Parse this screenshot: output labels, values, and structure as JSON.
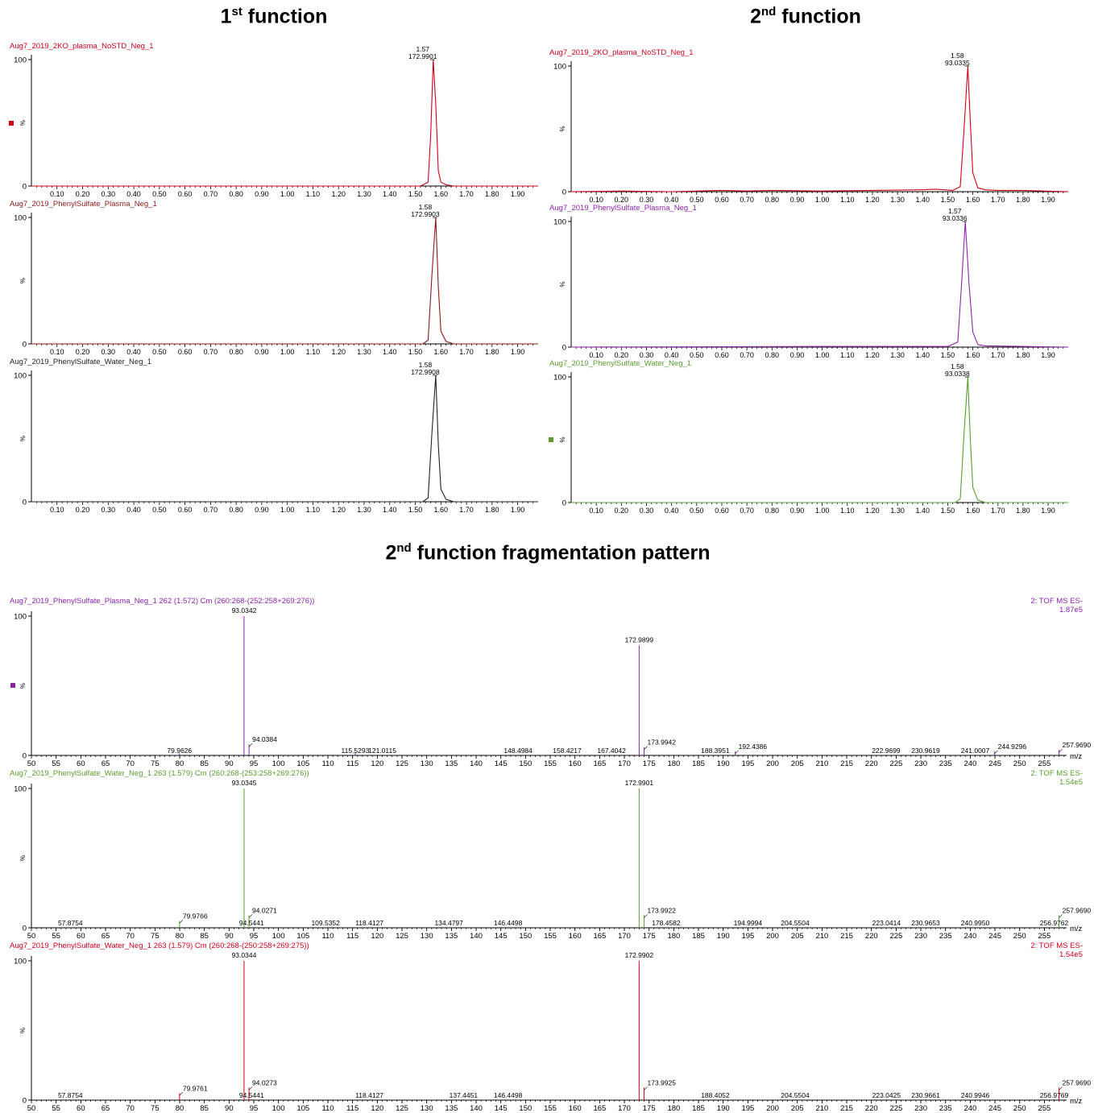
{
  "titles": {
    "left": {
      "pre": "1",
      "sup": "st",
      "post": " function"
    },
    "right": {
      "pre": "2",
      "sup": "nd",
      "post": " function"
    },
    "bottom": {
      "pre": "2",
      "sup": "nd",
      "post": " function fragmentation pattern"
    }
  },
  "chart_data": [
    {
      "id": "c1",
      "type": "line",
      "title": "Aug7_2019_2KO_plasma_NoSTD_Neg_1",
      "color": "#d0021b",
      "legend_marker": true,
      "x_axis": "time",
      "xlim": [
        0,
        1.98
      ],
      "ylim": [
        0,
        100
      ],
      "yticks": [
        0,
        100
      ],
      "ylabel": "%",
      "xticks": [
        "0.10",
        "0.20",
        "0.30",
        "0.40",
        "0.50",
        "0.60",
        "0.70",
        "0.80",
        "0.90",
        "1.00",
        "1.10",
        "1.20",
        "1.30",
        "1.40",
        "1.50",
        "1.60",
        "1.70",
        "1.80",
        "1.90"
      ],
      "x": [
        0.0,
        1.52,
        1.55,
        1.56,
        1.57,
        1.58,
        1.59,
        1.6,
        1.62,
        1.65,
        1.98
      ],
      "y": [
        0,
        0,
        3,
        40,
        100,
        65,
        12,
        3,
        1,
        0,
        0
      ],
      "peak_labels": [
        {
          "x": 1.57,
          "line1": "1.57",
          "line2": "172.9901"
        }
      ]
    },
    {
      "id": "c2",
      "type": "line",
      "title": "Aug7_2019_PhenylSulfate_Plasma_Neg_1",
      "color": "#8b1a1a",
      "legend_marker": false,
      "x_axis": "time",
      "xlim": [
        0,
        1.98
      ],
      "ylim": [
        0,
        100
      ],
      "yticks": [
        0,
        100
      ],
      "ylabel": "%",
      "xticks": [
        "0.10",
        "0.20",
        "0.30",
        "0.40",
        "0.50",
        "0.60",
        "0.70",
        "0.80",
        "0.90",
        "1.00",
        "1.10",
        "1.20",
        "1.30",
        "1.40",
        "1.50",
        "1.60",
        "1.70",
        "1.80",
        "1.90"
      ],
      "x": [
        0.0,
        1.53,
        1.55,
        1.565,
        1.58,
        1.59,
        1.6,
        1.62,
        1.65,
        1.98
      ],
      "y": [
        0,
        0,
        3,
        55,
        100,
        45,
        10,
        2,
        0,
        0
      ],
      "peak_labels": [
        {
          "x": 1.58,
          "line1": "1.58",
          "line2": "172.9903"
        }
      ]
    },
    {
      "id": "c3",
      "type": "line",
      "title": "Aug7_2019_PhenylSulfate_Water_Neg_1",
      "color": "#222222",
      "legend_marker": false,
      "x_axis": "time",
      "xlim": [
        0,
        1.98
      ],
      "ylim": [
        0,
        100
      ],
      "yticks": [
        0,
        100
      ],
      "ylabel": "%",
      "xticks": [
        "0.10",
        "0.20",
        "0.30",
        "0.40",
        "0.50",
        "0.60",
        "0.70",
        "0.80",
        "0.90",
        "1.00",
        "1.10",
        "1.20",
        "1.30",
        "1.40",
        "1.50",
        "1.60",
        "1.70",
        "1.80",
        "1.90"
      ],
      "x": [
        0.0,
        1.53,
        1.55,
        1.565,
        1.58,
        1.59,
        1.6,
        1.62,
        1.65,
        1.98
      ],
      "y": [
        0,
        0,
        3,
        55,
        100,
        45,
        10,
        2,
        0,
        0
      ],
      "peak_labels": [
        {
          "x": 1.58,
          "line1": "1.58",
          "line2": "172.9908"
        }
      ]
    },
    {
      "id": "c4",
      "type": "line",
      "title": "Aug7_2019_2KO_plasma_NoSTD_Neg_1",
      "color": "#d0021b",
      "legend_marker": false,
      "x_axis": "time",
      "xlim": [
        0,
        1.98
      ],
      "ylim": [
        0,
        100
      ],
      "yticks": [
        0,
        100
      ],
      "ylabel": "%",
      "xticks": [
        "0.10",
        "0.20",
        "0.30",
        "0.40",
        "0.50",
        "0.60",
        "0.70",
        "0.80",
        "0.90",
        "1.00",
        "1.10",
        "1.20",
        "1.30",
        "1.40",
        "1.50",
        "1.60",
        "1.70",
        "1.80",
        "1.90"
      ],
      "x": [
        0.0,
        0.2,
        0.4,
        0.6,
        0.7,
        0.8,
        1.0,
        1.2,
        1.4,
        1.45,
        1.52,
        1.55,
        1.565,
        1.58,
        1.59,
        1.6,
        1.62,
        1.65,
        1.7,
        1.8,
        1.98
      ],
      "y": [
        0,
        0.5,
        0,
        1,
        0.5,
        1,
        0.5,
        1,
        1.5,
        2,
        1,
        4,
        50,
        100,
        55,
        15,
        3,
        1.5,
        1,
        1,
        0
      ],
      "peak_labels": [
        {
          "x": 1.58,
          "line1": "1.58",
          "line2": "93.0335"
        }
      ]
    },
    {
      "id": "c5",
      "type": "line",
      "title": "Aug7_2019_PhenylSulfate_Plasma_Neg_1",
      "color": "#8e24aa",
      "legend_marker": false,
      "x_axis": "time",
      "xlim": [
        0,
        1.98
      ],
      "ylim": [
        0,
        100
      ],
      "yticks": [
        0,
        100
      ],
      "ylabel": "%",
      "xticks": [
        "0.10",
        "0.20",
        "0.30",
        "0.40",
        "0.50",
        "0.60",
        "0.70",
        "0.80",
        "0.90",
        "1.00",
        "1.10",
        "1.20",
        "1.30",
        "1.40",
        "1.50",
        "1.60",
        "1.70",
        "1.80",
        "1.90"
      ],
      "x": [
        0.0,
        1.0,
        1.2,
        1.5,
        1.54,
        1.555,
        1.57,
        1.585,
        1.6,
        1.62,
        1.65,
        1.8,
        1.98
      ],
      "y": [
        0,
        0.5,
        0.5,
        0.5,
        4,
        50,
        100,
        50,
        12,
        2,
        1,
        0.5,
        0
      ],
      "peak_labels": [
        {
          "x": 1.57,
          "line1": "1.57",
          "line2": "93.0336"
        }
      ]
    },
    {
      "id": "c6",
      "type": "line",
      "title": "Aug7_2019_PhenylSulfate_Water_Neg_1",
      "color": "#5a9e2f",
      "legend_marker": true,
      "x_axis": "time",
      "xlim": [
        0,
        1.98
      ],
      "ylim": [
        0,
        100
      ],
      "yticks": [
        0,
        100
      ],
      "ylabel": "%",
      "xticks": [
        "0.10",
        "0.20",
        "0.30",
        "0.40",
        "0.50",
        "0.60",
        "0.70",
        "0.80",
        "0.90",
        "1.00",
        "1.10",
        "1.20",
        "1.30",
        "1.40",
        "1.50",
        "1.60",
        "1.70",
        "1.80",
        "1.90"
      ],
      "x": [
        0.0,
        1.53,
        1.55,
        1.565,
        1.58,
        1.59,
        1.6,
        1.62,
        1.65,
        1.98
      ],
      "y": [
        0,
        0,
        3,
        55,
        100,
        50,
        12,
        2,
        0,
        0
      ],
      "peak_labels": [
        {
          "x": 1.58,
          "line1": "1.58",
          "line2": "93.0338"
        }
      ]
    },
    {
      "id": "m1",
      "type": "bar",
      "title": "Aug7_2019_PhenylSulfate_Plasma_Neg_1 262 (1.572) Cm (260:268-(252:258+269:276))",
      "right_label_1": "2: TOF MS ES-",
      "right_label_2": "1.87e5",
      "color": "#8e24aa",
      "legend_marker": true,
      "x_axis": "mz",
      "xlim": [
        50,
        259.5
      ],
      "ylim": [
        0,
        100
      ],
      "yticks": [
        0,
        100
      ],
      "ylabel": "%",
      "x_unit": "m/z",
      "xticks": [
        "50",
        "55",
        "60",
        "65",
        "70",
        "75",
        "80",
        "85",
        "90",
        "95",
        "100",
        "105",
        "110",
        "115",
        "120",
        "125",
        "130",
        "135",
        "140",
        "145",
        "150",
        "155",
        "160",
        "165",
        "170",
        "175",
        "180",
        "185",
        "190",
        "195",
        "200",
        "205",
        "210",
        "215",
        "220",
        "225",
        "230",
        "235",
        "240",
        "245",
        "250",
        "255"
      ],
      "peaks": [
        {
          "mz": 79.9626,
          "intensity": 1.5,
          "label": "79.9626"
        },
        {
          "mz": 93.0342,
          "intensity": 100,
          "label": "93.0342"
        },
        {
          "mz": 94.0384,
          "intensity": 8,
          "label": "94.0384"
        },
        {
          "mz": 115.5293,
          "intensity": 2,
          "label": "115.5293"
        },
        {
          "mz": 121.0115,
          "intensity": 0.5,
          "label": "121.0115"
        },
        {
          "mz": 148.4984,
          "intensity": 0.5,
          "label": "148.4984"
        },
        {
          "mz": 158.4217,
          "intensity": 0.5,
          "label": "158.4217"
        },
        {
          "mz": 167.4042,
          "intensity": 0.5,
          "label": "167.4042"
        },
        {
          "mz": 172.9899,
          "intensity": 79,
          "label": "172.9899"
        },
        {
          "mz": 173.9942,
          "intensity": 6,
          "label": "173.9942"
        },
        {
          "mz": 188.3951,
          "intensity": 0.5,
          "label": "188.3951"
        },
        {
          "mz": 192.4386,
          "intensity": 3,
          "label": "192.4386"
        },
        {
          "mz": 222.9699,
          "intensity": 0.5,
          "label": "222.9699"
        },
        {
          "mz": 230.9619,
          "intensity": 0.5,
          "label": "230.9619"
        },
        {
          "mz": 241.0007,
          "intensity": 0.5,
          "label": "241.0007"
        },
        {
          "mz": 244.9296,
          "intensity": 3,
          "label": "244.9296"
        },
        {
          "mz": 257.969,
          "intensity": 4,
          "label": "257.9690"
        }
      ]
    },
    {
      "id": "m2",
      "type": "bar",
      "title": "Aug7_2019_PhenylSulfate_Water_Neg_1 263 (1.579) Cm (260:268-(253:258+269:276))",
      "right_label_1": "2: TOF MS ES-",
      "right_label_2": "1.54e5",
      "color": "#5a9e2f",
      "legend_marker": false,
      "x_axis": "mz",
      "xlim": [
        50,
        259.5
      ],
      "ylim": [
        0,
        100
      ],
      "yticks": [
        0,
        100
      ],
      "ylabel": "%",
      "x_unit": "m/z",
      "xticks": [
        "50",
        "55",
        "60",
        "65",
        "70",
        "75",
        "80",
        "85",
        "90",
        "95",
        "100",
        "105",
        "110",
        "115",
        "120",
        "125",
        "130",
        "135",
        "140",
        "145",
        "150",
        "155",
        "160",
        "165",
        "170",
        "175",
        "180",
        "185",
        "190",
        "195",
        "200",
        "205",
        "210",
        "215",
        "220",
        "225",
        "230",
        "235",
        "240",
        "245",
        "250",
        "255"
      ],
      "peaks": [
        {
          "mz": 57.8754,
          "intensity": 0.5,
          "label": "57.8754"
        },
        {
          "mz": 79.9766,
          "intensity": 5,
          "label": "79.9766"
        },
        {
          "mz": 93.0345,
          "intensity": 100,
          "label": "93.0345"
        },
        {
          "mz": 94.0271,
          "intensity": 9,
          "label": "94.0271"
        },
        {
          "mz": 94.5441,
          "intensity": 0.5,
          "label": "94.5441"
        },
        {
          "mz": 109.5352,
          "intensity": 0.5,
          "label": "109.5352"
        },
        {
          "mz": 118.4127,
          "intensity": 0.5,
          "label": "118.4127"
        },
        {
          "mz": 134.4797,
          "intensity": 0.5,
          "label": "134.4797"
        },
        {
          "mz": 146.4498,
          "intensity": 0.5,
          "label": "146.4498"
        },
        {
          "mz": 172.9901,
          "intensity": 100,
          "label": "172.9901"
        },
        {
          "mz": 173.9922,
          "intensity": 9,
          "label": "173.9922"
        },
        {
          "mz": 178.4582,
          "intensity": 0.5,
          "label": "178.4582"
        },
        {
          "mz": 194.9994,
          "intensity": 0.5,
          "label": "194.9994"
        },
        {
          "mz": 204.5504,
          "intensity": 0.5,
          "label": "204.5504"
        },
        {
          "mz": 223.0414,
          "intensity": 0.5,
          "label": "223.0414"
        },
        {
          "mz": 230.9653,
          "intensity": 0.5,
          "label": "230.9653"
        },
        {
          "mz": 240.995,
          "intensity": 0.5,
          "label": "240.9950"
        },
        {
          "mz": 256.9762,
          "intensity": 0.5,
          "label": "256.9762"
        },
        {
          "mz": 257.969,
          "intensity": 9,
          "label": "257.9690"
        }
      ]
    },
    {
      "id": "m3",
      "type": "bar",
      "title": "Aug7_2019_PhenylSulfate_Water_Neg_1 263 (1.579) Cm (260:268-(250:258+269:275))",
      "right_label_1": "2: TOF MS ES-",
      "right_label_2": "1.54e5",
      "color": "#d0021b",
      "legend_marker": false,
      "x_axis": "mz",
      "xlim": [
        50,
        259.5
      ],
      "ylim": [
        0,
        100
      ],
      "yticks": [
        0,
        100
      ],
      "ylabel": "%",
      "x_unit": "m/z",
      "xticks": [
        "50",
        "55",
        "60",
        "65",
        "70",
        "75",
        "80",
        "85",
        "90",
        "95",
        "100",
        "105",
        "110",
        "115",
        "120",
        "125",
        "130",
        "135",
        "140",
        "145",
        "150",
        "155",
        "160",
        "165",
        "170",
        "175",
        "180",
        "185",
        "190",
        "195",
        "200",
        "205",
        "210",
        "215",
        "220",
        "225",
        "230",
        "235",
        "240",
        "245",
        "250",
        "255"
      ],
      "peaks": [
        {
          "mz": 57.8754,
          "intensity": 0.5,
          "label": "57.8754"
        },
        {
          "mz": 79.9761,
          "intensity": 5,
          "label": "79.9761"
        },
        {
          "mz": 93.0344,
          "intensity": 100,
          "label": "93.0344"
        },
        {
          "mz": 94.0273,
          "intensity": 9,
          "label": "94.0273"
        },
        {
          "mz": 94.5441,
          "intensity": 0.5,
          "label": "94.5441"
        },
        {
          "mz": 118.4127,
          "intensity": 0.5,
          "label": "118.4127"
        },
        {
          "mz": 137.4451,
          "intensity": 0.5,
          "label": "137.4451"
        },
        {
          "mz": 146.4498,
          "intensity": 0.5,
          "label": "146.4498"
        },
        {
          "mz": 172.9902,
          "intensity": 100,
          "label": "172.9902"
        },
        {
          "mz": 173.9925,
          "intensity": 9,
          "label": "173.9925"
        },
        {
          "mz": 188.4052,
          "intensity": 0.5,
          "label": "188.4052"
        },
        {
          "mz": 204.5504,
          "intensity": 0.5,
          "label": "204.5504"
        },
        {
          "mz": 223.0425,
          "intensity": 0.5,
          "label": "223.0425"
        },
        {
          "mz": 230.9661,
          "intensity": 0.5,
          "label": "230.9661"
        },
        {
          "mz": 240.9946,
          "intensity": 0.5,
          "label": "240.9946"
        },
        {
          "mz": 256.9769,
          "intensity": 0.5,
          "label": "256.9769"
        },
        {
          "mz": 257.969,
          "intensity": 9,
          "label": "257.9690"
        }
      ]
    }
  ]
}
